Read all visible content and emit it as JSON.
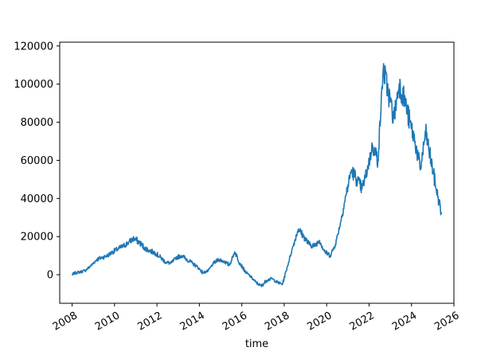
{
  "chart_data": {
    "type": "line",
    "title": "",
    "xlabel": "time",
    "ylabel": "",
    "grid": false,
    "legend": "none",
    "color": "#1f77b4",
    "xlim": [
      "2007-06-01",
      "2026-01-01"
    ],
    "ylim": [
      -15000,
      122000
    ],
    "x_ticks": [
      "2008",
      "2010",
      "2012",
      "2014",
      "2016",
      "2018",
      "2020",
      "2022",
      "2024",
      "2026"
    ],
    "y_ticks": [
      0,
      20000,
      40000,
      60000,
      80000,
      100000,
      120000
    ],
    "series": [
      {
        "x": [
          "2008-01",
          "2008-03",
          "2008-06",
          "2008-09",
          "2008-12",
          "2009-03",
          "2009-06",
          "2009-09",
          "2009-12",
          "2010-03",
          "2010-06",
          "2010-09",
          "2010-12",
          "2011-03",
          "2011-06",
          "2011-09",
          "2011-12",
          "2012-03",
          "2012-06",
          "2012-09",
          "2012-12",
          "2013-03",
          "2013-06",
          "2013-09",
          "2013-12",
          "2014-03",
          "2014-06",
          "2014-09",
          "2014-12",
          "2015-03",
          "2015-06",
          "2015-09",
          "2015-12",
          "2016-03",
          "2016-06",
          "2016-09",
          "2016-12",
          "2017-03",
          "2017-06",
          "2017-09",
          "2017-12",
          "2018-03",
          "2018-06",
          "2018-09",
          "2018-12",
          "2019-03",
          "2019-06",
          "2019-09",
          "2019-12",
          "2020-03",
          "2020-06",
          "2020-09",
          "2020-12",
          "2021-03",
          "2021-06",
          "2021-09",
          "2021-12",
          "2022-03",
          "2022-06",
          "2022-09",
          "2022-12",
          "2023-03",
          "2023-06",
          "2023-09",
          "2023-12",
          "2024-03",
          "2024-06",
          "2024-09",
          "2024-12",
          "2025-03",
          "2025-06"
        ],
        "y": [
          0,
          1000,
          1500,
          2500,
          5000,
          8000,
          9000,
          10000,
          12000,
          13500,
          15000,
          17000,
          19000,
          17000,
          14000,
          12500,
          11500,
          9000,
          6500,
          6000,
          9000,
          10000,
          8000,
          6000,
          4000,
          1000,
          2000,
          6000,
          8000,
          7000,
          5000,
          12000,
          6000,
          1500,
          -1000,
          -4000,
          -6000,
          -3000,
          -2000,
          -4000,
          -5000,
          5000,
          15000,
          24000,
          20000,
          16000,
          15000,
          18000,
          12000,
          10000,
          16000,
          28000,
          42000,
          55000,
          50000,
          45000,
          55000,
          68000,
          60000,
          108000,
          95000,
          82000,
          100000,
          92000,
          80000,
          70000,
          55000,
          75000,
          60000,
          45000,
          32000
        ]
      }
    ]
  }
}
